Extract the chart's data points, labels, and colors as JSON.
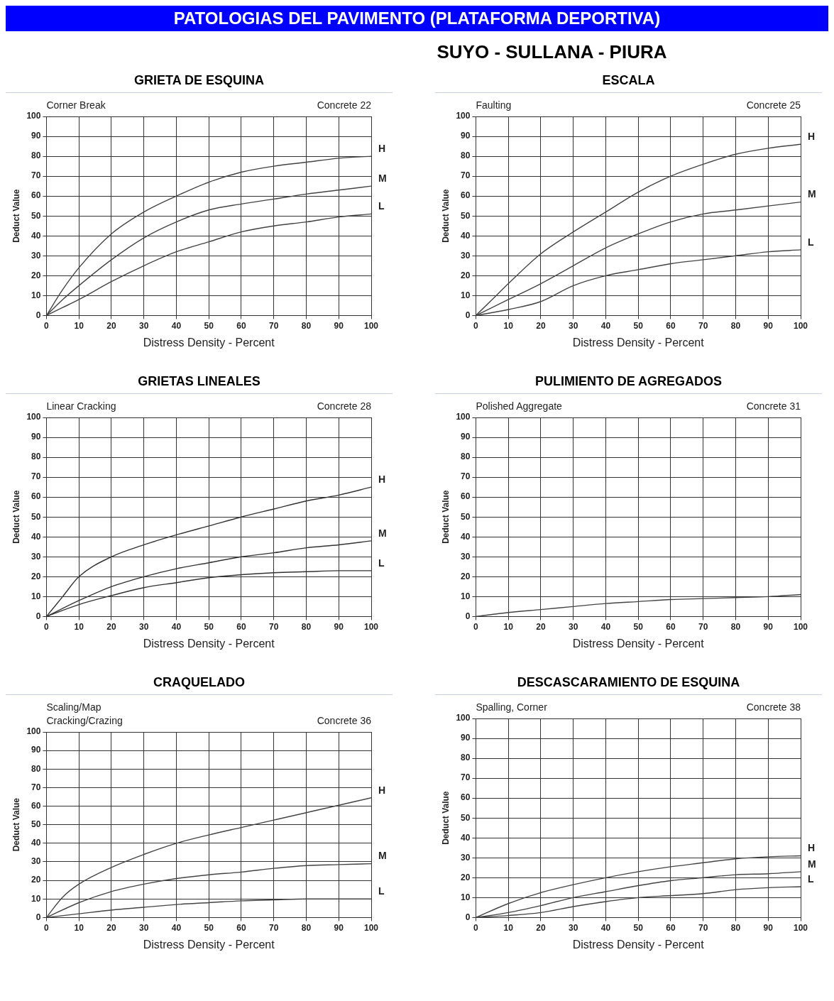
{
  "chart_data": [
    {
      "type": "line",
      "title": "GRIETA DE ESQUINA",
      "subtitle": "Corner Break",
      "annotations": [
        "Concrete 22",
        "PATOLOGIAS DEL PAVIMENTO (PLATAFORMA DEPORTIVA)",
        "SUYO - SULLANA - PIURA"
      ],
      "xlabel": "Distress Density - Percent",
      "ylabel": "Deduct Value",
      "xlim": [
        0,
        100
      ],
      "xticks": [
        0,
        10,
        20,
        30,
        40,
        50,
        60,
        70,
        80,
        90,
        100
      ],
      "ylim": [
        0,
        100
      ],
      "yticks": [
        0,
        10,
        20,
        30,
        40,
        50,
        60,
        70,
        80,
        90,
        100
      ],
      "grid": true,
      "series": [
        {
          "name": "H",
          "color": "#444444",
          "x": [
            0,
            5,
            10,
            20,
            30,
            40,
            50,
            60,
            70,
            80,
            90,
            100
          ],
          "values": [
            0,
            13,
            24,
            41,
            52,
            60,
            67,
            72,
            75,
            77,
            79,
            80
          ]
        },
        {
          "name": "M",
          "color": "#444444",
          "x": [
            0,
            5,
            10,
            20,
            30,
            40,
            50,
            60,
            70,
            80,
            90,
            100
          ],
          "values": [
            0,
            8,
            15,
            28,
            39,
            47,
            53,
            56,
            58.5,
            61,
            63,
            65
          ]
        },
        {
          "name": "L",
          "color": "#444444",
          "x": [
            0,
            5,
            10,
            20,
            30,
            40,
            50,
            60,
            70,
            80,
            90,
            100
          ],
          "values": [
            0,
            4,
            8,
            17,
            25,
            32,
            37,
            42,
            45,
            47,
            49.5,
            51
          ]
        }
      ]
    },
    {
      "type": "line",
      "title": "ESCALA",
      "subtitle": "Faulting",
      "annotations": [
        "Concrete 25"
      ],
      "xlabel": "Distress Density - Percent",
      "ylabel": "Deduct Value",
      "xlim": [
        0,
        100
      ],
      "xticks": [
        0,
        10,
        20,
        30,
        40,
        50,
        60,
        70,
        80,
        90,
        100
      ],
      "ylim": [
        0,
        100
      ],
      "yticks": [
        0,
        10,
        20,
        30,
        40,
        50,
        60,
        70,
        80,
        90,
        100
      ],
      "grid": true,
      "series": [
        {
          "name": "H",
          "color": "#444444",
          "x": [
            0,
            5,
            10,
            20,
            30,
            40,
            50,
            60,
            70,
            80,
            90,
            100
          ],
          "values": [
            0,
            8,
            16,
            31,
            42,
            52,
            62,
            70,
            76,
            81,
            84,
            86
          ]
        },
        {
          "name": "M",
          "color": "#444444",
          "x": [
            0,
            10,
            20,
            30,
            40,
            50,
            60,
            70,
            80,
            90,
            100
          ],
          "values": [
            0,
            8,
            16,
            25,
            34,
            41,
            47,
            51,
            53,
            55,
            57
          ]
        },
        {
          "name": "L",
          "color": "#444444",
          "x": [
            0,
            10,
            20,
            30,
            40,
            50,
            60,
            70,
            80,
            90,
            100
          ],
          "values": [
            0,
            3,
            7,
            15,
            20,
            23,
            26,
            28,
            30,
            32,
            33
          ]
        }
      ]
    },
    {
      "type": "line",
      "title": "GRIETAS LINEALES",
      "subtitle": "Linear Cracking",
      "annotations": [
        "Concrete 28"
      ],
      "xlabel": "Distress Density - Percent",
      "ylabel": "Deduct Value",
      "xlim": [
        0,
        100
      ],
      "xticks": [
        0,
        10,
        20,
        30,
        40,
        50,
        60,
        70,
        80,
        90,
        100
      ],
      "ylim": [
        0,
        100
      ],
      "yticks": [
        0,
        10,
        20,
        30,
        40,
        50,
        60,
        70,
        80,
        90,
        100
      ],
      "grid": true,
      "series": [
        {
          "name": "H",
          "color": "#333333",
          "x": [
            0,
            5,
            10,
            20,
            30,
            40,
            50,
            60,
            70,
            80,
            90,
            100
          ],
          "values": [
            0,
            10,
            20,
            30,
            36,
            41,
            45.5,
            50,
            54,
            58,
            61,
            65
          ]
        },
        {
          "name": "M",
          "color": "#333333",
          "x": [
            0,
            10,
            20,
            30,
            40,
            50,
            60,
            70,
            80,
            90,
            100
          ],
          "values": [
            0,
            8,
            15,
            20,
            24,
            27,
            30,
            32,
            34.5,
            36,
            38
          ]
        },
        {
          "name": "L",
          "color": "#333333",
          "x": [
            0,
            10,
            20,
            30,
            40,
            50,
            60,
            70,
            80,
            90,
            100
          ],
          "values": [
            0,
            6,
            10.5,
            14.5,
            17,
            19.5,
            21,
            22,
            22.5,
            23,
            23
          ]
        }
      ]
    },
    {
      "type": "line",
      "title": "PULIMIENTO DE AGREGADOS",
      "subtitle": "Polished Aggregate",
      "annotations": [
        "Concrete 31"
      ],
      "xlabel": "Distress Density - Percent",
      "ylabel": "Deduct Value",
      "xlim": [
        0,
        100
      ],
      "xticks": [
        0,
        10,
        20,
        30,
        40,
        50,
        60,
        70,
        80,
        90,
        100
      ],
      "ylim": [
        0,
        100
      ],
      "yticks": [
        0,
        10,
        20,
        30,
        40,
        50,
        60,
        70,
        80,
        90,
        100
      ],
      "grid": true,
      "series": [
        {
          "color": "#444444",
          "x": [
            0,
            10,
            20,
            30,
            40,
            50,
            60,
            70,
            80,
            90,
            100
          ],
          "values": [
            0,
            2,
            3.5,
            5,
            6.5,
            7.5,
            8.5,
            9,
            9.5,
            10,
            11
          ]
        }
      ]
    },
    {
      "type": "line",
      "title": "CRAQUELADO",
      "subtitle": "Scaling/Map\nCracking/Crazing",
      "annotations": [
        "Concrete 36"
      ],
      "xlabel": "Distress Density - Percent",
      "ylabel": "Deduct Value",
      "xlim": [
        0,
        100
      ],
      "xticks": [
        0,
        10,
        20,
        30,
        40,
        50,
        60,
        70,
        80,
        90,
        100
      ],
      "ylim": [
        0,
        100
      ],
      "yticks": [
        0,
        10,
        20,
        30,
        40,
        50,
        60,
        70,
        80,
        90,
        100
      ],
      "grid": true,
      "series": [
        {
          "name": "H",
          "color": "#444444",
          "x": [
            0,
            5,
            10,
            20,
            30,
            40,
            50,
            60,
            70,
            80,
            90,
            100
          ],
          "values": [
            0,
            11,
            18,
            27,
            34,
            40,
            44.5,
            48.5,
            52.5,
            56.5,
            60.5,
            64.5
          ]
        },
        {
          "name": "M",
          "color": "#444444",
          "x": [
            0,
            10,
            20,
            30,
            40,
            50,
            60,
            70,
            80,
            90,
            100
          ],
          "values": [
            0,
            8,
            14,
            18,
            21,
            23,
            24.5,
            26.5,
            28,
            28.5,
            29
          ]
        },
        {
          "name": "L",
          "color": "#444444",
          "x": [
            0,
            10,
            20,
            30,
            40,
            50,
            60,
            70,
            80,
            90,
            100
          ],
          "values": [
            0,
            2,
            4,
            5.5,
            7,
            8,
            9,
            9.5,
            10,
            10,
            10
          ]
        }
      ]
    },
    {
      "type": "line",
      "title": "DESCASCARAMIENTO DE ESQUINA",
      "subtitle": "Spalling, Corner",
      "annotations": [
        "Concrete 38"
      ],
      "xlabel": "Distress Density - Percent",
      "ylabel": "Deduct Value",
      "xlim": [
        0,
        100
      ],
      "xticks": [
        0,
        10,
        20,
        30,
        40,
        50,
        60,
        70,
        80,
        90,
        100
      ],
      "ylim": [
        0,
        100
      ],
      "yticks": [
        0,
        10,
        20,
        30,
        40,
        50,
        60,
        70,
        80,
        90,
        100
      ],
      "grid": true,
      "series": [
        {
          "name": "H",
          "color": "#444444",
          "x": [
            0,
            10,
            20,
            30,
            40,
            50,
            60,
            70,
            80,
            90,
            100
          ],
          "values": [
            0,
            7,
            12.5,
            16.5,
            20,
            23,
            25.5,
            27.5,
            29.5,
            30.5,
            31
          ]
        },
        {
          "name": "M",
          "color": "#444444",
          "x": [
            0,
            10,
            20,
            30,
            40,
            50,
            60,
            70,
            80,
            90,
            100
          ],
          "values": [
            0,
            2.5,
            6,
            10,
            13,
            16,
            18.5,
            20,
            21.5,
            22,
            23
          ]
        },
        {
          "name": "L",
          "color": "#444444",
          "x": [
            0,
            10,
            20,
            30,
            40,
            50,
            60,
            70,
            80,
            90,
            100
          ],
          "values": [
            0,
            1,
            2.5,
            5.5,
            8,
            10,
            11,
            12,
            14,
            15,
            15.5
          ]
        }
      ]
    }
  ]
}
